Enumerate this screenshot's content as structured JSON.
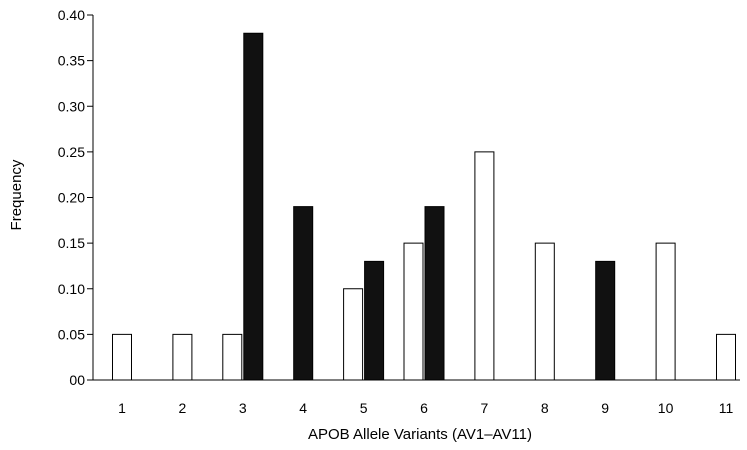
{
  "chart_data": {
    "type": "bar",
    "categories": [
      "1",
      "2",
      "3",
      "4",
      "5",
      "6",
      "7",
      "8",
      "9",
      "10",
      "11"
    ],
    "series": [
      {
        "values": [
          0.05,
          0.05,
          0.05,
          null,
          0.1,
          0.15,
          0.25,
          0.15,
          null,
          0.15,
          0.05
        ],
        "color": "#ffffff"
      },
      {
        "values": [
          null,
          null,
          0.38,
          0.19,
          0.13,
          0.19,
          null,
          null,
          0.13,
          null,
          null
        ],
        "color": "#111111"
      }
    ],
    "xlabel": "APOB Allele Variants (AV1–AV11)",
    "ylabel": "Frequency",
    "ylim": [
      0,
      0.4
    ],
    "yticks": [
      "00",
      "0.05",
      "0.10",
      "0.15",
      "0.20",
      "0.25",
      "0.30",
      "0.35",
      "0.40"
    ],
    "grid": false,
    "legend": "none"
  }
}
